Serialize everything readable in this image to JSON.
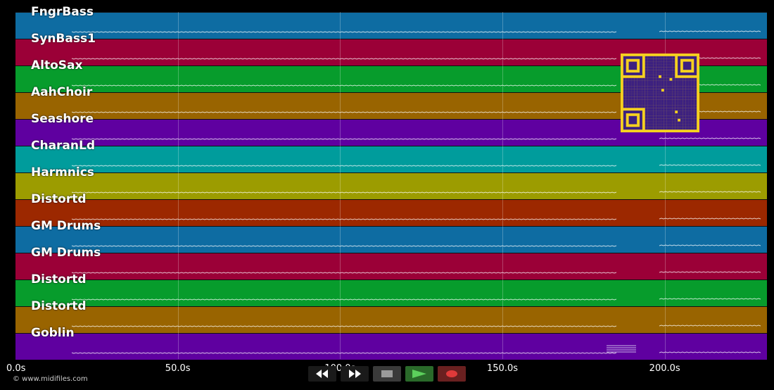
{
  "tracks": [
    {
      "name": "FngrBass",
      "color": "#0e6ca2"
    },
    {
      "name": "SynBass1",
      "color": "#9b0037"
    },
    {
      "name": "AltoSax",
      "color": "#079c2c"
    },
    {
      "name": "AahChoir",
      "color": "#996400"
    },
    {
      "name": "Seashore",
      "color": "#5f00a0"
    },
    {
      "name": "CharanLd",
      "color": "#009c9c"
    },
    {
      "name": "Harmnics",
      "color": "#9c9c00"
    },
    {
      "name": "Distortd",
      "color": "#9c2800"
    },
    {
      "name": "GM Drums",
      "color": "#0e6ca2"
    },
    {
      "name": "GM Drums",
      "color": "#9b0037"
    },
    {
      "name": "Distortd",
      "color": "#079c2c"
    },
    {
      "name": "Distortd",
      "color": "#996400"
    },
    {
      "name": "Goblin",
      "color": "#5f00a0"
    }
  ],
  "timeline": {
    "labels": [
      "0.0s",
      "50.0s",
      "100.0s",
      "150.0s",
      "200.0s"
    ],
    "seconds": [
      0,
      50,
      100,
      150,
      200
    ],
    "max_seconds": 231.5
  },
  "copyright": "© www.midifiles.com",
  "controls": {
    "rewind_icon": "rewind-icon",
    "forward_icon": "fast-forward-icon",
    "stop_icon": "stop-icon",
    "play_icon": "play-icon",
    "record_icon": "record-icon"
  },
  "qr_icon": "qr-code-icon"
}
